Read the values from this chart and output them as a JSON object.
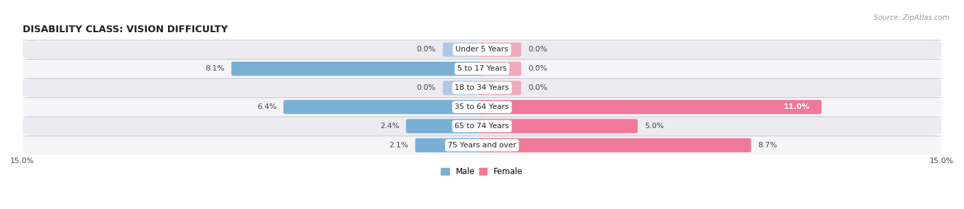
{
  "title": "DISABILITY CLASS: VISION DIFFICULTY",
  "source": "Source: ZipAtlas.com",
  "categories": [
    "Under 5 Years",
    "5 to 17 Years",
    "18 to 34 Years",
    "35 to 64 Years",
    "65 to 74 Years",
    "75 Years and over"
  ],
  "male_values": [
    0.0,
    8.1,
    0.0,
    6.4,
    2.4,
    2.1
  ],
  "female_values": [
    0.0,
    0.0,
    0.0,
    11.0,
    5.0,
    8.7
  ],
  "x_max": 15.0,
  "male_color": "#7aafd4",
  "female_color": "#f07898",
  "male_color_light": "#adc8e8",
  "female_color_light": "#f0aabb",
  "male_label": "Male",
  "female_label": "Female",
  "row_colors": [
    "#ebebf0",
    "#f5f5f8"
  ],
  "title_fontsize": 10,
  "label_fontsize": 8,
  "value_fontsize": 8,
  "axis_label_fontsize": 8,
  "legend_fontsize": 8.5
}
